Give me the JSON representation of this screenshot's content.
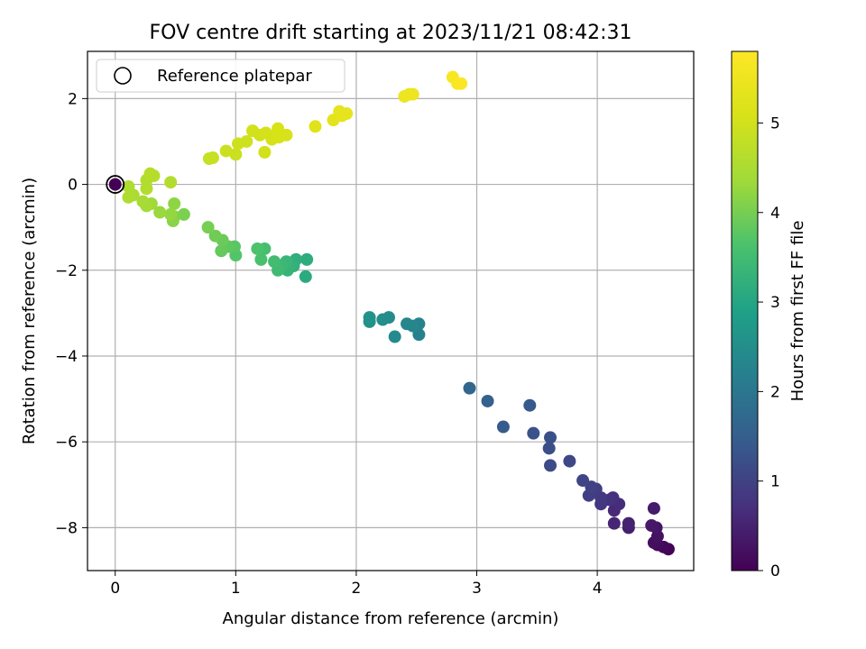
{
  "chart_data": {
    "type": "scatter",
    "title": "FOV centre drift starting at 2023/11/21 08:42:31",
    "xlabel": "Angular distance from reference (arcmin)",
    "ylabel": "Rotation from reference (arcmin)",
    "xlim": [
      -0.23,
      4.8
    ],
    "ylim": [
      -9.0,
      3.1
    ],
    "xticks": [
      0,
      1,
      2,
      3,
      4
    ],
    "yticks": [
      2,
      0,
      -2,
      -4,
      -6,
      -8
    ],
    "grid": true,
    "legend": {
      "placement": "top-left",
      "entries": [
        "Reference platepar"
      ]
    },
    "colorbar": {
      "label": "Hours from first FF file",
      "range": [
        0,
        5.8
      ],
      "ticks": [
        0,
        1,
        2,
        3,
        4,
        5
      ],
      "colormap": "viridis"
    },
    "reference": {
      "x": 0,
      "y": 0
    },
    "points": [
      {
        "x": 4.59,
        "y": -8.5,
        "c": 0.05
      },
      {
        "x": 4.55,
        "y": -8.45,
        "c": 0.1
      },
      {
        "x": 4.5,
        "y": -8.4,
        "c": 0.15
      },
      {
        "x": 4.47,
        "y": -8.35,
        "c": 0.2
      },
      {
        "x": 4.5,
        "y": -8.2,
        "c": 0.25
      },
      {
        "x": 4.49,
        "y": -8.0,
        "c": 0.3
      },
      {
        "x": 4.45,
        "y": -7.95,
        "c": 0.35
      },
      {
        "x": 4.47,
        "y": -7.55,
        "c": 0.4
      },
      {
        "x": 4.26,
        "y": -8.0,
        "c": 0.45
      },
      {
        "x": 4.26,
        "y": -7.9,
        "c": 0.5
      },
      {
        "x": 4.14,
        "y": -7.9,
        "c": 0.55
      },
      {
        "x": 4.14,
        "y": -7.6,
        "c": 0.6
      },
      {
        "x": 4.18,
        "y": -7.45,
        "c": 0.65
      },
      {
        "x": 4.13,
        "y": -7.3,
        "c": 0.7
      },
      {
        "x": 4.1,
        "y": -7.35,
        "c": 0.75
      },
      {
        "x": 4.03,
        "y": -7.45,
        "c": 0.8
      },
      {
        "x": 4.03,
        "y": -7.3,
        "c": 0.85
      },
      {
        "x": 3.99,
        "y": -7.1,
        "c": 0.9
      },
      {
        "x": 3.93,
        "y": -7.25,
        "c": 0.95
      },
      {
        "x": 3.95,
        "y": -7.05,
        "c": 1.0
      },
      {
        "x": 3.88,
        "y": -6.9,
        "c": 1.05
      },
      {
        "x": 3.77,
        "y": -6.45,
        "c": 1.1
      },
      {
        "x": 3.61,
        "y": -6.55,
        "c": 1.15
      },
      {
        "x": 3.6,
        "y": -6.15,
        "c": 1.2
      },
      {
        "x": 3.61,
        "y": -5.9,
        "c": 1.25
      },
      {
        "x": 3.47,
        "y": -5.8,
        "c": 1.3
      },
      {
        "x": 3.44,
        "y": -5.15,
        "c": 1.4
      },
      {
        "x": 3.22,
        "y": -5.65,
        "c": 1.45
      },
      {
        "x": 3.09,
        "y": -5.05,
        "c": 1.55
      },
      {
        "x": 2.94,
        "y": -4.75,
        "c": 1.65
      },
      {
        "x": 2.52,
        "y": -3.5,
        "c": 2.2
      },
      {
        "x": 2.52,
        "y": -3.25,
        "c": 2.25
      },
      {
        "x": 2.47,
        "y": -3.3,
        "c": 2.3
      },
      {
        "x": 2.42,
        "y": -3.25,
        "c": 2.35
      },
      {
        "x": 2.32,
        "y": -3.55,
        "c": 2.4
      },
      {
        "x": 2.27,
        "y": -3.1,
        "c": 2.45
      },
      {
        "x": 2.22,
        "y": -3.15,
        "c": 2.5
      },
      {
        "x": 2.11,
        "y": -3.2,
        "c": 2.55
      },
      {
        "x": 2.11,
        "y": -3.1,
        "c": 2.6
      },
      {
        "x": 1.58,
        "y": -2.15,
        "c": 3.1
      },
      {
        "x": 1.59,
        "y": -1.75,
        "c": 3.15
      },
      {
        "x": 1.5,
        "y": -1.75,
        "c": 3.2
      },
      {
        "x": 1.48,
        "y": -1.9,
        "c": 3.25
      },
      {
        "x": 1.43,
        "y": -2.0,
        "c": 3.3
      },
      {
        "x": 1.42,
        "y": -1.8,
        "c": 3.35
      },
      {
        "x": 1.38,
        "y": -1.9,
        "c": 3.4
      },
      {
        "x": 1.35,
        "y": -2.0,
        "c": 3.45
      },
      {
        "x": 1.32,
        "y": -1.8,
        "c": 3.5
      },
      {
        "x": 1.24,
        "y": -1.5,
        "c": 3.55
      },
      {
        "x": 1.21,
        "y": -1.75,
        "c": 3.6
      },
      {
        "x": 1.18,
        "y": -1.5,
        "c": 3.65
      },
      {
        "x": 1.0,
        "y": -1.65,
        "c": 3.7
      },
      {
        "x": 0.99,
        "y": -1.45,
        "c": 3.75
      },
      {
        "x": 0.94,
        "y": -1.45,
        "c": 3.8
      },
      {
        "x": 0.88,
        "y": -1.55,
        "c": 3.85
      },
      {
        "x": 0.89,
        "y": -1.3,
        "c": 3.9
      },
      {
        "x": 0.83,
        "y": -1.2,
        "c": 3.95
      },
      {
        "x": 0.77,
        "y": -1.0,
        "c": 4.0
      },
      {
        "x": 0.57,
        "y": -0.7,
        "c": 4.05
      },
      {
        "x": 0.49,
        "y": -0.75,
        "c": 4.1
      },
      {
        "x": 0.48,
        "y": -0.85,
        "c": 4.15
      },
      {
        "x": 0.49,
        "y": -0.45,
        "c": 4.2
      },
      {
        "x": 0.46,
        "y": -0.7,
        "c": 4.25
      },
      {
        "x": 0.37,
        "y": -0.65,
        "c": 4.3
      },
      {
        "x": 0.3,
        "y": -0.45,
        "c": 4.35
      },
      {
        "x": 0.26,
        "y": -0.5,
        "c": 4.4
      },
      {
        "x": 0.23,
        "y": -0.4,
        "c": 4.45
      },
      {
        "x": 0.15,
        "y": -0.25,
        "c": 4.5
      },
      {
        "x": 0.11,
        "y": -0.3,
        "c": 4.55
      },
      {
        "x": 0.11,
        "y": -0.05,
        "c": 4.55
      },
      {
        "x": 0.26,
        "y": -0.1,
        "c": 4.6
      },
      {
        "x": 0.26,
        "y": 0.1,
        "c": 4.6
      },
      {
        "x": 0.29,
        "y": 0.25,
        "c": 4.65
      },
      {
        "x": 0.32,
        "y": 0.2,
        "c": 4.65
      },
      {
        "x": 0.46,
        "y": 0.05,
        "c": 4.6
      },
      {
        "x": 0.78,
        "y": 0.6,
        "c": 4.85
      },
      {
        "x": 0.81,
        "y": 0.62,
        "c": 4.85
      },
      {
        "x": 0.92,
        "y": 0.78,
        "c": 4.9
      },
      {
        "x": 1.0,
        "y": 0.7,
        "c": 4.9
      },
      {
        "x": 1.02,
        "y": 0.95,
        "c": 4.95
      },
      {
        "x": 1.09,
        "y": 1.0,
        "c": 4.95
      },
      {
        "x": 1.14,
        "y": 1.25,
        "c": 5.0
      },
      {
        "x": 1.2,
        "y": 1.15,
        "c": 5.0
      },
      {
        "x": 1.24,
        "y": 0.75,
        "c": 5.0
      },
      {
        "x": 1.25,
        "y": 1.2,
        "c": 5.05
      },
      {
        "x": 1.3,
        "y": 1.05,
        "c": 5.05
      },
      {
        "x": 1.33,
        "y": 1.15,
        "c": 5.05
      },
      {
        "x": 1.35,
        "y": 1.3,
        "c": 5.1
      },
      {
        "x": 1.36,
        "y": 1.1,
        "c": 5.1
      },
      {
        "x": 1.42,
        "y": 1.15,
        "c": 5.1
      },
      {
        "x": 1.66,
        "y": 1.35,
        "c": 5.25
      },
      {
        "x": 1.81,
        "y": 1.5,
        "c": 5.3
      },
      {
        "x": 1.86,
        "y": 1.7,
        "c": 5.35
      },
      {
        "x": 1.88,
        "y": 1.6,
        "c": 5.35
      },
      {
        "x": 1.92,
        "y": 1.65,
        "c": 5.35
      },
      {
        "x": 2.4,
        "y": 2.05,
        "c": 5.5
      },
      {
        "x": 2.44,
        "y": 2.1,
        "c": 5.5
      },
      {
        "x": 2.47,
        "y": 2.1,
        "c": 5.5
      },
      {
        "x": 2.8,
        "y": 2.5,
        "c": 5.7
      },
      {
        "x": 2.84,
        "y": 2.35,
        "c": 5.75
      },
      {
        "x": 2.87,
        "y": 2.35,
        "c": 5.75
      },
      {
        "x": 0.0,
        "y": 0.0,
        "c": 0.0
      }
    ]
  }
}
